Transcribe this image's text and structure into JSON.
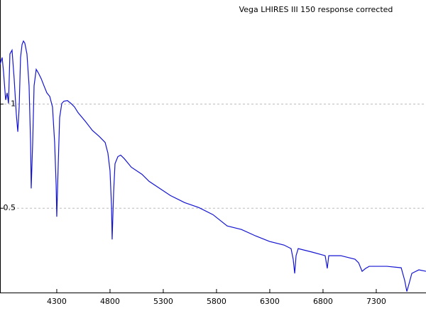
{
  "chart_data": {
    "type": "line",
    "title": "Vega LHIRES III 150  response corrected",
    "x": [
      3767,
      3787,
      3800,
      3820,
      3834,
      3847,
      3860,
      3880,
      3900,
      3920,
      3934,
      3947,
      3960,
      3974,
      3987,
      4000,
      4020,
      4040,
      4054,
      4060,
      4074,
      4087,
      4107,
      4127,
      4154,
      4180,
      4207,
      4234,
      4260,
      4280,
      4294,
      4300,
      4314,
      4327,
      4347,
      4367,
      4400,
      4434,
      4467,
      4500,
      4567,
      4634,
      4700,
      4754,
      4780,
      4800,
      4814,
      4820,
      4834,
      4847,
      4874,
      4900,
      4934,
      5000,
      5100,
      5167,
      5267,
      5367,
      5500,
      5634,
      5767,
      5900,
      6034,
      6167,
      6300,
      6434,
      6500,
      6520,
      6534,
      6547,
      6567,
      6700,
      6820,
      6840,
      6854,
      6967,
      7100,
      7134,
      7167,
      7200,
      7234,
      7300,
      7400,
      7534,
      7567,
      7587,
      7607,
      7634,
      7700,
      7767
    ],
    "values": [
      1.19,
      1.224,
      1.156,
      1.02,
      1.054,
      1.003,
      1.241,
      1.259,
      1.122,
      0.952,
      0.867,
      0.986,
      1.224,
      1.286,
      1.303,
      1.293,
      1.241,
      1.088,
      0.816,
      0.595,
      0.816,
      1.088,
      1.167,
      1.15,
      1.122,
      1.088,
      1.054,
      1.037,
      0.986,
      0.816,
      0.612,
      0.459,
      0.714,
      0.935,
      1.003,
      1.014,
      1.017,
      1.003,
      0.986,
      0.959,
      0.918,
      0.874,
      0.844,
      0.816,
      0.765,
      0.68,
      0.51,
      0.35,
      0.578,
      0.714,
      0.748,
      0.755,
      0.738,
      0.697,
      0.663,
      0.629,
      0.595,
      0.561,
      0.527,
      0.503,
      0.469,
      0.415,
      0.398,
      0.367,
      0.34,
      0.323,
      0.306,
      0.255,
      0.187,
      0.272,
      0.306,
      0.289,
      0.272,
      0.211,
      0.272,
      0.272,
      0.255,
      0.238,
      0.197,
      0.211,
      0.221,
      0.221,
      0.221,
      0.214,
      0.153,
      0.1,
      0.136,
      0.187,
      0.204,
      0.197
    ],
    "color": "#1414d2",
    "xlim": [
      3767,
      7767
    ],
    "xticks": [
      4300,
      4800,
      5300,
      5800,
      6300,
      6800,
      7300
    ],
    "ylim": [
      0.095,
      1.5
    ],
    "yticks": [
      0.5,
      1
    ],
    "grid": true
  }
}
